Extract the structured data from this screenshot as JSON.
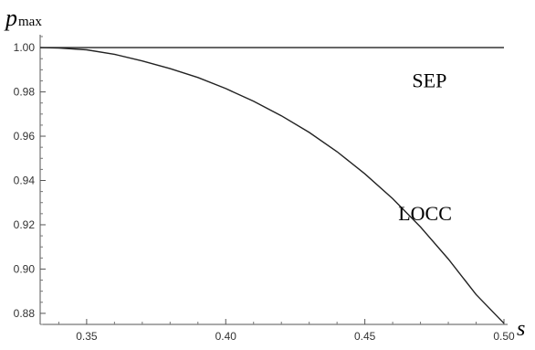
{
  "chart_data": {
    "type": "line",
    "xlabel": "s",
    "ylabel": "p",
    "ylabel_subscript": "max",
    "xlim": [
      0.3333,
      0.5
    ],
    "ylim": [
      0.875,
      1.005
    ],
    "x_ticks": [
      0.35,
      0.4,
      0.45,
      0.5
    ],
    "x_tick_labels": [
      "0.35",
      "0.40",
      "0.45",
      "0.50"
    ],
    "y_ticks": [
      0.88,
      0.9,
      0.92,
      0.94,
      0.96,
      0.98,
      1.0
    ],
    "y_tick_labels": [
      "0.88",
      "0.90",
      "0.92",
      "0.94",
      "0.96",
      "0.98",
      "1.00"
    ],
    "grid": false,
    "series": [
      {
        "name": "SEP",
        "x": [
          0.3333,
          0.5
        ],
        "y": [
          1.0,
          1.0
        ]
      },
      {
        "name": "LOCC",
        "x": [
          0.3333,
          0.34,
          0.35,
          0.36,
          0.37,
          0.38,
          0.39,
          0.4,
          0.41,
          0.42,
          0.43,
          0.44,
          0.45,
          0.46,
          0.47,
          0.48,
          0.49,
          0.5
        ],
        "y": [
          1.0,
          0.9998,
          0.999,
          0.997,
          0.994,
          0.9905,
          0.9865,
          0.9815,
          0.9758,
          0.9692,
          0.9617,
          0.953,
          0.943,
          0.9318,
          0.919,
          0.9045,
          0.8885,
          0.8755
        ]
      }
    ],
    "annotations": [
      {
        "text": "SEP",
        "x": 0.467,
        "y": 0.982
      },
      {
        "text": "LOCC",
        "x": 0.462,
        "y": 0.922
      }
    ]
  }
}
